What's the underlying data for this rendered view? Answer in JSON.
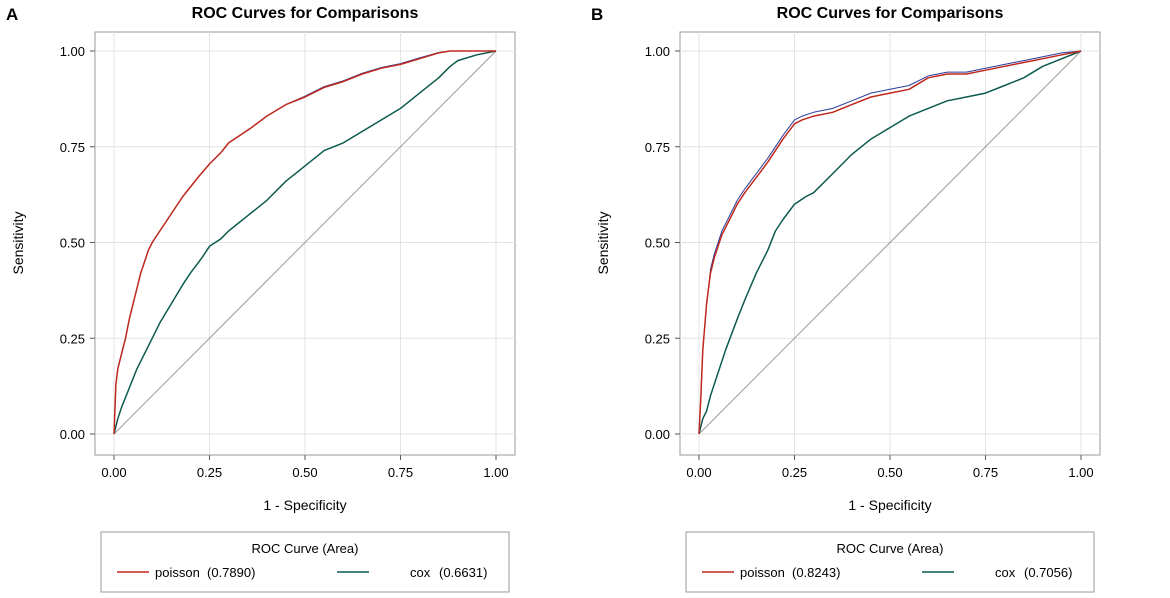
{
  "chart_data": [
    {
      "panel": "A",
      "type": "line",
      "title": "ROC Curves for Comparisons",
      "xlabel": "1 - Specificity",
      "ylabel": "Sensitivity",
      "xlim": [
        0,
        1
      ],
      "ylim": [
        0,
        1
      ],
      "xticks": [
        "0.00",
        "0.25",
        "0.50",
        "0.75",
        "1.00"
      ],
      "yticks": [
        "0.00",
        "0.25",
        "0.50",
        "0.75",
        "1.00"
      ],
      "grid": true,
      "legend_title": "ROC Curve (Area)",
      "legend_position": "bottom",
      "series": [
        {
          "name": "poisson",
          "label": "poisson",
          "auc": "(0.7890)",
          "color": "#c0281e",
          "x": [
            0,
            0.005,
            0.01,
            0.02,
            0.03,
            0.04,
            0.05,
            0.06,
            0.07,
            0.08,
            0.09,
            0.1,
            0.12,
            0.14,
            0.16,
            0.18,
            0.2,
            0.22,
            0.25,
            0.28,
            0.3,
            0.33,
            0.36,
            0.4,
            0.45,
            0.5,
            0.55,
            0.6,
            0.65,
            0.7,
            0.75,
            0.8,
            0.85,
            0.88,
            0.92,
            1.0
          ],
          "y": [
            0,
            0.13,
            0.17,
            0.21,
            0.25,
            0.3,
            0.34,
            0.38,
            0.42,
            0.45,
            0.48,
            0.5,
            0.53,
            0.56,
            0.59,
            0.62,
            0.645,
            0.67,
            0.705,
            0.735,
            0.76,
            0.78,
            0.8,
            0.83,
            0.86,
            0.88,
            0.905,
            0.92,
            0.94,
            0.955,
            0.965,
            0.98,
            0.995,
            1.0,
            1.0,
            1.0
          ]
        },
        {
          "name": "poisson-ref",
          "label": "",
          "auc": "",
          "color": "#2a3d9a",
          "x": [
            0,
            0.005,
            0.01,
            0.02,
            0.03,
            0.04,
            0.05,
            0.06,
            0.07,
            0.08,
            0.09,
            0.1,
            0.12,
            0.14,
            0.16,
            0.18,
            0.2,
            0.22,
            0.25,
            0.28,
            0.3,
            0.33,
            0.36,
            0.4,
            0.45,
            0.5,
            0.55,
            0.6,
            0.65,
            0.7,
            0.75,
            0.8,
            0.85,
            0.88,
            0.92,
            1.0
          ],
          "y": [
            0,
            0.13,
            0.17,
            0.21,
            0.25,
            0.3,
            0.34,
            0.38,
            0.42,
            0.45,
            0.48,
            0.5,
            0.53,
            0.56,
            0.59,
            0.62,
            0.645,
            0.67,
            0.705,
            0.735,
            0.76,
            0.78,
            0.8,
            0.83,
            0.86,
            0.882,
            0.907,
            0.922,
            0.942,
            0.957,
            0.967,
            0.982,
            0.996,
            1.0,
            1.0,
            1.0
          ]
        },
        {
          "name": "cox",
          "label": "cox",
          "auc": "(0.6631)",
          "color": "#0c5a4e",
          "x": [
            0,
            0.01,
            0.02,
            0.04,
            0.06,
            0.08,
            0.1,
            0.12,
            0.15,
            0.18,
            0.2,
            0.23,
            0.25,
            0.28,
            0.3,
            0.35,
            0.4,
            0.45,
            0.5,
            0.55,
            0.6,
            0.65,
            0.7,
            0.75,
            0.8,
            0.85,
            0.88,
            0.9,
            0.95,
            1.0
          ],
          "y": [
            0,
            0.04,
            0.07,
            0.12,
            0.17,
            0.21,
            0.25,
            0.29,
            0.34,
            0.39,
            0.42,
            0.46,
            0.49,
            0.51,
            0.53,
            0.57,
            0.61,
            0.66,
            0.7,
            0.74,
            0.76,
            0.79,
            0.82,
            0.85,
            0.89,
            0.93,
            0.96,
            0.975,
            0.99,
            1.0
          ]
        }
      ]
    },
    {
      "panel": "B",
      "type": "line",
      "title": "ROC Curves for Comparisons",
      "xlabel": "1 - Specificity",
      "ylabel": "Sensitivity",
      "xlim": [
        0,
        1
      ],
      "ylim": [
        0,
        1
      ],
      "xticks": [
        "0.00",
        "0.25",
        "0.50",
        "0.75",
        "1.00"
      ],
      "yticks": [
        "0.00",
        "0.25",
        "0.50",
        "0.75",
        "1.00"
      ],
      "grid": true,
      "legend_title": "ROC Curve (Area)",
      "legend_position": "bottom",
      "series": [
        {
          "name": "poisson",
          "label": "poisson",
          "auc": "(0.8243)",
          "color": "#c0281e",
          "x": [
            0,
            0.005,
            0.01,
            0.015,
            0.02,
            0.025,
            0.03,
            0.04,
            0.05,
            0.06,
            0.08,
            0.1,
            0.12,
            0.15,
            0.18,
            0.2,
            0.22,
            0.25,
            0.27,
            0.3,
            0.35,
            0.4,
            0.45,
            0.5,
            0.55,
            0.6,
            0.65,
            0.7,
            0.75,
            0.8,
            0.85,
            0.9,
            0.95,
            1.0
          ],
          "y": [
            0,
            0.1,
            0.22,
            0.28,
            0.34,
            0.38,
            0.42,
            0.46,
            0.49,
            0.52,
            0.56,
            0.6,
            0.63,
            0.67,
            0.71,
            0.74,
            0.77,
            0.81,
            0.82,
            0.83,
            0.84,
            0.86,
            0.88,
            0.89,
            0.9,
            0.93,
            0.94,
            0.94,
            0.95,
            0.96,
            0.97,
            0.98,
            0.99,
            1.0
          ]
        },
        {
          "name": "poisson-ref",
          "label": "",
          "auc": "",
          "color": "#2a3d9a",
          "x": [
            0,
            0.005,
            0.01,
            0.015,
            0.02,
            0.025,
            0.03,
            0.04,
            0.05,
            0.06,
            0.08,
            0.1,
            0.12,
            0.15,
            0.18,
            0.2,
            0.22,
            0.25,
            0.27,
            0.3,
            0.35,
            0.4,
            0.45,
            0.5,
            0.55,
            0.6,
            0.65,
            0.7,
            0.75,
            0.8,
            0.85,
            0.9,
            0.95,
            1.0
          ],
          "y": [
            0,
            0.1,
            0.22,
            0.28,
            0.34,
            0.38,
            0.43,
            0.47,
            0.5,
            0.53,
            0.57,
            0.61,
            0.64,
            0.68,
            0.72,
            0.75,
            0.78,
            0.82,
            0.83,
            0.84,
            0.85,
            0.87,
            0.89,
            0.9,
            0.91,
            0.935,
            0.945,
            0.945,
            0.955,
            0.965,
            0.975,
            0.985,
            0.995,
            1.0
          ]
        },
        {
          "name": "cox",
          "label": "cox",
          "auc": "(0.7056)",
          "color": "#0c5a4e",
          "x": [
            0,
            0.01,
            0.02,
            0.03,
            0.05,
            0.07,
            0.1,
            0.12,
            0.15,
            0.18,
            0.2,
            0.22,
            0.25,
            0.28,
            0.3,
            0.35,
            0.4,
            0.45,
            0.5,
            0.55,
            0.6,
            0.65,
            0.7,
            0.75,
            0.8,
            0.85,
            0.9,
            0.95,
            1.0
          ],
          "y": [
            0,
            0.04,
            0.06,
            0.1,
            0.16,
            0.22,
            0.3,
            0.35,
            0.42,
            0.48,
            0.53,
            0.56,
            0.6,
            0.62,
            0.63,
            0.68,
            0.73,
            0.77,
            0.8,
            0.83,
            0.85,
            0.87,
            0.88,
            0.89,
            0.91,
            0.93,
            0.96,
            0.98,
            1.0
          ]
        }
      ]
    }
  ],
  "panel_letters": [
    "A",
    "B"
  ]
}
